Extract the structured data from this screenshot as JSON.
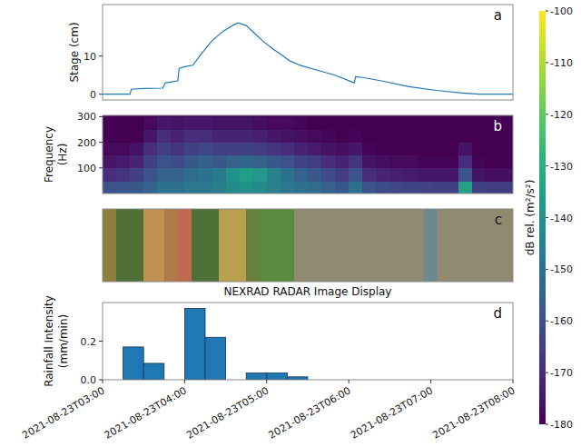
{
  "chart_data": [
    {
      "type": "line",
      "panel_label": "a",
      "y_label": "Stage (cm)",
      "color": "#1f77b4",
      "xlim": [
        "2021-08-23T03:00",
        "2021-08-23T08:00"
      ],
      "ylim": [
        -1.5,
        23.5
      ],
      "yticks": [
        0,
        10
      ],
      "tick_labels": "y",
      "x": [
        "2021-08-23T03:00",
        "2021-08-23T03:20",
        "2021-08-23T03:21",
        "2021-08-23T03:30",
        "2021-08-23T03:44",
        "2021-08-23T03:46",
        "2021-08-23T03:55",
        "2021-08-23T03:56",
        "2021-08-23T04:00",
        "2021-08-23T04:06",
        "2021-08-23T04:12",
        "2021-08-23T04:20",
        "2021-08-23T04:28",
        "2021-08-23T04:35",
        "2021-08-23T04:39",
        "2021-08-23T04:45",
        "2021-08-23T04:51",
        "2021-08-23T04:57",
        "2021-08-23T05:04",
        "2021-08-23T05:10",
        "2021-08-23T05:17",
        "2021-08-23T05:25",
        "2021-08-23T05:37",
        "2021-08-23T05:50",
        "2021-08-23T06:04",
        "2021-08-23T06:05",
        "2021-08-23T06:10",
        "2021-08-23T06:24",
        "2021-08-23T06:44",
        "2021-08-23T07:04",
        "2021-08-23T07:23",
        "2021-08-23T07:35",
        "2021-08-23T08:00"
      ],
      "values": [
        0,
        0,
        1.3,
        1.5,
        1.6,
        3.0,
        3.5,
        6.8,
        7.2,
        7.6,
        10.5,
        14,
        16.5,
        18,
        18.7,
        18,
        16,
        14,
        12,
        10.5,
        8.7,
        7.5,
        6.3,
        5,
        3,
        4.6,
        4.4,
        3.5,
        2,
        1,
        0.3,
        0,
        0
      ]
    },
    {
      "type": "heatmap",
      "panel_label": "b",
      "y_label": "Frequency (Hz)",
      "xlim": [
        "2021-08-23T03:00",
        "2021-08-23T08:00"
      ],
      "ylim": [
        0,
        305
      ],
      "yticks": [
        100,
        200,
        300
      ],
      "tick_labels": "y",
      "x_bins": [
        "2021-08-23T03:00",
        "2021-08-23T03:10",
        "2021-08-23T03:20",
        "2021-08-23T03:30",
        "2021-08-23T03:40",
        "2021-08-23T03:50",
        "2021-08-23T04:00",
        "2021-08-23T04:10",
        "2021-08-23T04:20",
        "2021-08-23T04:30",
        "2021-08-23T04:40",
        "2021-08-23T04:50",
        "2021-08-23T05:00",
        "2021-08-23T05:10",
        "2021-08-23T05:20",
        "2021-08-23T05:30",
        "2021-08-23T05:40",
        "2021-08-23T05:50",
        "2021-08-23T06:00",
        "2021-08-23T06:10",
        "2021-08-23T06:20",
        "2021-08-23T06:30",
        "2021-08-23T06:40",
        "2021-08-23T06:50",
        "2021-08-23T07:00",
        "2021-08-23T07:10",
        "2021-08-23T07:20",
        "2021-08-23T07:30",
        "2021-08-23T07:40",
        "2021-08-23T07:50",
        "2021-08-23T08:00"
      ],
      "y_bins": [
        0,
        50,
        100,
        150,
        200,
        250,
        300
      ],
      "cells": [
        [
          -160,
          -170,
          -175,
          -178,
          -180,
          -180
        ],
        [
          -158,
          -168,
          -174,
          -178,
          -180,
          -180
        ],
        [
          -158,
          -165,
          -172,
          -176,
          -180,
          -180
        ],
        [
          -155,
          -160,
          -165,
          -170,
          -175,
          -178
        ],
        [
          -150,
          -155,
          -160,
          -165,
          -170,
          -175
        ],
        [
          -150,
          -155,
          -162,
          -168,
          -172,
          -176
        ],
        [
          -148,
          -152,
          -158,
          -165,
          -170,
          -175
        ],
        [
          -148,
          -150,
          -156,
          -163,
          -170,
          -175
        ],
        [
          -146,
          -148,
          -158,
          -165,
          -172,
          -176
        ],
        [
          -142,
          -140,
          -155,
          -165,
          -172,
          -176
        ],
        [
          -140,
          -136,
          -154,
          -165,
          -172,
          -176
        ],
        [
          -142,
          -138,
          -155,
          -166,
          -173,
          -177
        ],
        [
          -145,
          -145,
          -158,
          -168,
          -175,
          -178
        ],
        [
          -148,
          -150,
          -160,
          -170,
          -176,
          -178
        ],
        [
          -150,
          -155,
          -164,
          -172,
          -177,
          -179
        ],
        [
          -152,
          -158,
          -166,
          -174,
          -178,
          -180
        ],
        [
          -155,
          -162,
          -170,
          -176,
          -179,
          -180
        ],
        [
          -158,
          -166,
          -172,
          -177,
          -180,
          -180
        ],
        [
          -150,
          -160,
          -168,
          -175,
          -179,
          -180
        ],
        [
          -160,
          -170,
          -176,
          -179,
          -180,
          -180
        ],
        [
          -162,
          -172,
          -177,
          -180,
          -180,
          -180
        ],
        [
          -163,
          -173,
          -178,
          -180,
          -180,
          -180
        ],
        [
          -164,
          -174,
          -178,
          -180,
          -180,
          -180
        ],
        [
          -164,
          -175,
          -179,
          -180,
          -180,
          -180
        ],
        [
          -165,
          -175,
          -179,
          -180,
          -180,
          -180
        ],
        [
          -165,
          -175,
          -179,
          -180,
          -180,
          -180
        ],
        [
          -135,
          -160,
          -170,
          -176,
          -180,
          -180
        ],
        [
          -165,
          -176,
          -179,
          -180,
          -180,
          -180
        ],
        [
          -166,
          -177,
          -180,
          -180,
          -180,
          -180
        ],
        [
          -166,
          -177,
          -180,
          -180,
          -180,
          -180
        ]
      ],
      "colorbar": {
        "label": "dB rel. (m²/s²)",
        "range": [
          -180,
          -100
        ],
        "ticks": [
          -100,
          -110,
          -120,
          -130,
          -140,
          -150,
          -160,
          -170,
          -180
        ]
      }
    },
    {
      "type": "strip",
      "panel_label": "c",
      "title": "NEXRAD RADAR Image Display",
      "xlim": [
        "2021-08-23T03:00",
        "2021-08-23T08:00"
      ],
      "tick_labels": false,
      "segments": [
        {
          "start": "2021-08-23T03:00",
          "end": "2021-08-23T03:10",
          "color": "#8c8040"
        },
        {
          "start": "2021-08-23T03:10",
          "end": "2021-08-23T03:30",
          "color": "#4f7035"
        },
        {
          "start": "2021-08-23T03:30",
          "end": "2021-08-23T03:45",
          "color": "#c09050"
        },
        {
          "start": "2021-08-23T03:45",
          "end": "2021-08-23T03:55",
          "color": "#b07a48"
        },
        {
          "start": "2021-08-23T03:55",
          "end": "2021-08-23T04:05",
          "color": "#c06a50"
        },
        {
          "start": "2021-08-23T04:05",
          "end": "2021-08-23T04:25",
          "color": "#4e7236"
        },
        {
          "start": "2021-08-23T04:25",
          "end": "2021-08-23T04:45",
          "color": "#b8a050"
        },
        {
          "start": "2021-08-23T04:45",
          "end": "2021-08-23T04:55",
          "color": "#6a8040"
        },
        {
          "start": "2021-08-23T04:55",
          "end": "2021-08-23T05:20",
          "color": "#5a8a3e"
        },
        {
          "start": "2021-08-23T05:20",
          "end": "2021-08-23T06:55",
          "color": "#8f8a70"
        },
        {
          "start": "2021-08-23T06:55",
          "end": "2021-08-23T07:05",
          "color": "#6e8a90"
        },
        {
          "start": "2021-08-23T07:05",
          "end": "2021-08-23T08:00",
          "color": "#8f8a70"
        }
      ]
    },
    {
      "type": "histogram",
      "panel_label": "d",
      "y_label": "Rainfall Intensity (mm/min)",
      "color": "#1f77b4",
      "xlim": [
        "2021-08-23T03:00",
        "2021-08-23T08:00"
      ],
      "ylim": [
        0,
        0.4
      ],
      "yticks": [
        {
          "value": 0,
          "label": "0.0"
        },
        {
          "value": 0.2,
          "label": "0.2"
        }
      ],
      "xticks": [
        "2021-08-23T03:00",
        "2021-08-23T04:00",
        "2021-08-23T05:00",
        "2021-08-23T06:00",
        "2021-08-23T07:00",
        "2021-08-23T08:00"
      ],
      "bins": [
        "2021-08-23T03:15",
        "2021-08-23T03:30",
        "2021-08-23T03:45",
        "2021-08-23T04:00",
        "2021-08-23T04:15",
        "2021-08-23T04:30",
        "2021-08-23T04:45",
        "2021-08-23T05:00",
        "2021-08-23T05:15",
        "2021-08-23T05:30"
      ],
      "values": [
        0.17,
        0.085,
        0,
        0.37,
        0.22,
        0,
        0.035,
        0.035,
        0.015
      ]
    }
  ]
}
